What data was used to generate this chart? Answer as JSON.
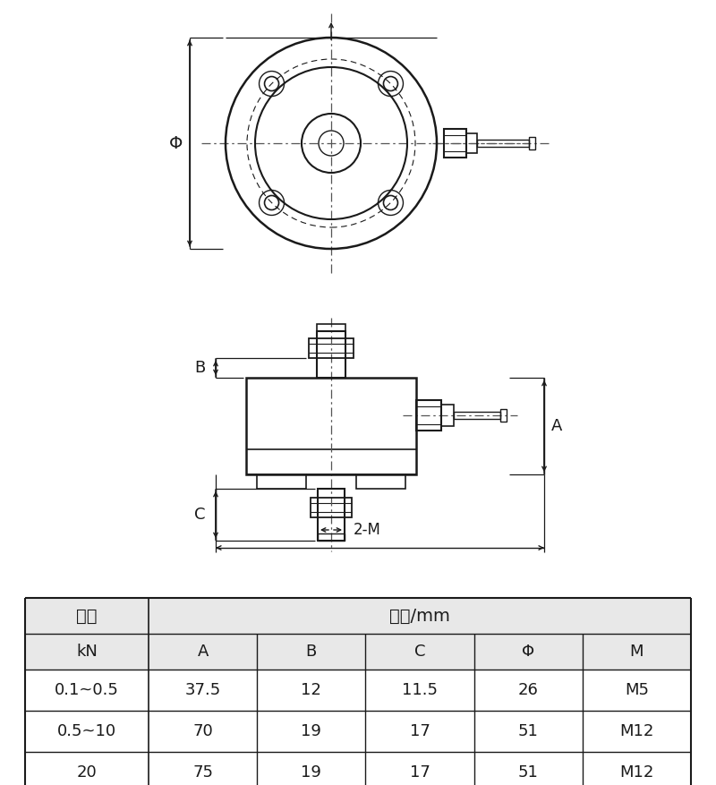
{
  "table_headers_row0": [
    "量程",
    "尺寸/mm"
  ],
  "col_headers": [
    "kN",
    "A",
    "B",
    "C",
    "Φ",
    "M"
  ],
  "rows": [
    [
      "0.1~0.5",
      "37.5",
      "12",
      "11.5",
      "26",
      "M5"
    ],
    [
      "0.5~10",
      "70",
      "19",
      "17",
      "51",
      "M12"
    ],
    [
      "20",
      "75",
      "19",
      "17",
      "51",
      "M12"
    ]
  ],
  "bg_color": "#ffffff",
  "line_color": "#1a1a1a",
  "text_color": "#1a1a1a",
  "dim_label_A": "A",
  "dim_label_B": "B",
  "dim_label_C": "C",
  "dim_label_Phi": "Φ",
  "dim_label_2M": "2-M"
}
